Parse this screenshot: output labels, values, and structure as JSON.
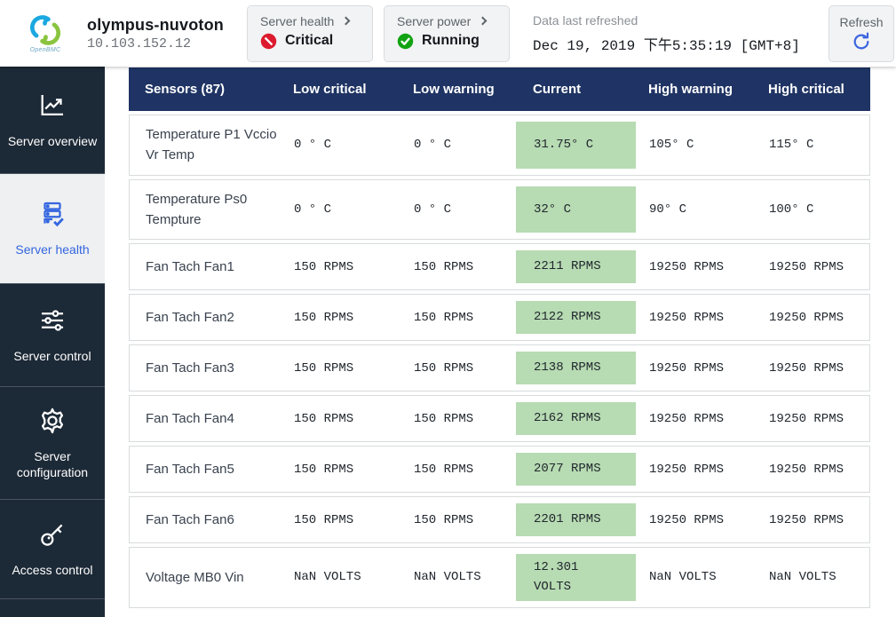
{
  "header": {
    "logo_text": "OpenBMC",
    "hostname": "olympus-nuvoton",
    "ip": "10.103.152.12",
    "health_card": {
      "label": "Server health",
      "status": "Critical",
      "status_color": "#dc1c2e"
    },
    "power_card": {
      "label": "Server power",
      "status": "Running",
      "status_color": "#12a312"
    },
    "refreshed": {
      "label": "Data last refreshed",
      "timestamp": "Dec 19, 2019 下午5:35:19 [GMT+8]"
    },
    "refresh_button": "Refresh",
    "accent_blue": "#3566e0"
  },
  "sidebar": {
    "items": [
      {
        "label": "Server overview",
        "icon": "line-chart-icon",
        "active": false
      },
      {
        "label": "Server health",
        "icon": "server-check-icon",
        "active": true
      },
      {
        "label": "Server control",
        "icon": "sliders-icon",
        "active": false
      },
      {
        "label": "Server configuration",
        "icon": "gear-icon",
        "active": false
      },
      {
        "label": "Access control",
        "icon": "key-icon",
        "active": false
      }
    ]
  },
  "table": {
    "columns": [
      "Sensors (87)",
      "Low critical",
      "Low warning",
      "Current",
      "High warning",
      "High critical"
    ],
    "current_highlight_color": "#b7dbb2",
    "header_color": "#1f3464",
    "rows": [
      {
        "name": "Temperature P1 Vccio Vr Temp",
        "low_critical": "0 ° C",
        "low_warning": "0 ° C",
        "current": "31.75° C",
        "high_warning": "105° C",
        "high_critical": "115° C"
      },
      {
        "name": "Temperature Ps0 Tempture",
        "low_critical": "0 ° C",
        "low_warning": "0 ° C",
        "current": "32° C",
        "high_warning": "90° C",
        "high_critical": "100° C"
      },
      {
        "name": "Fan Tach Fan1",
        "low_critical": "150 RPMS",
        "low_warning": "150 RPMS",
        "current": "2211 RPMS",
        "high_warning": "19250 RPMS",
        "high_critical": "19250 RPMS"
      },
      {
        "name": "Fan Tach Fan2",
        "low_critical": "150 RPMS",
        "low_warning": "150 RPMS",
        "current": "2122 RPMS",
        "high_warning": "19250 RPMS",
        "high_critical": "19250 RPMS"
      },
      {
        "name": "Fan Tach Fan3",
        "low_critical": "150 RPMS",
        "low_warning": "150 RPMS",
        "current": "2138 RPMS",
        "high_warning": "19250 RPMS",
        "high_critical": "19250 RPMS"
      },
      {
        "name": "Fan Tach Fan4",
        "low_critical": "150 RPMS",
        "low_warning": "150 RPMS",
        "current": "2162 RPMS",
        "high_warning": "19250 RPMS",
        "high_critical": "19250 RPMS"
      },
      {
        "name": "Fan Tach Fan5",
        "low_critical": "150 RPMS",
        "low_warning": "150 RPMS",
        "current": "2077 RPMS",
        "high_warning": "19250 RPMS",
        "high_critical": "19250 RPMS"
      },
      {
        "name": "Fan Tach Fan6",
        "low_critical": "150 RPMS",
        "low_warning": "150 RPMS",
        "current": "2201 RPMS",
        "high_warning": "19250 RPMS",
        "high_critical": "19250 RPMS"
      },
      {
        "name": "Voltage MB0 Vin",
        "low_critical": "NaN VOLTS",
        "low_warning": "NaN VOLTS",
        "current": "12.301 VOLTS",
        "high_warning": "NaN VOLTS",
        "high_critical": "NaN VOLTS"
      }
    ]
  }
}
